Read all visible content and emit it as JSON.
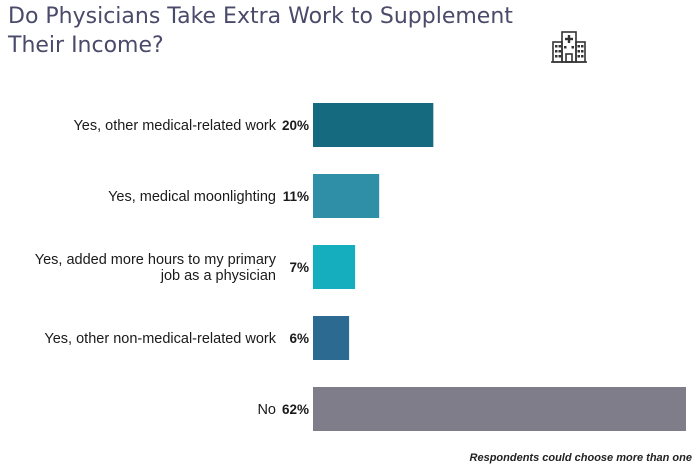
{
  "chart_data": {
    "type": "bar",
    "orientation": "horizontal",
    "title": "Do Physicians Take Extra Work to Supplement Their Income?",
    "categories": [
      [
        "Yes, other medical-related work"
      ],
      [
        "Yes, medical moonlighting"
      ],
      [
        "Yes, added more hours to my primary",
        "job as a physician"
      ],
      [
        "Yes, other non-medical-related work"
      ],
      [
        "No"
      ]
    ],
    "values": [
      20,
      11,
      7,
      6,
      62
    ],
    "value_labels": [
      "20%",
      "11%",
      "7%",
      "6%",
      "62%"
    ],
    "colors": [
      "#156a7f",
      "#2e8fa6",
      "#14aebf",
      "#2c6a92",
      "#7e7d89"
    ],
    "xlim": [
      0,
      62
    ],
    "grid": false,
    "legend": "none"
  },
  "icon": "hospital-icon",
  "footnote": "Respondents could choose more than one"
}
